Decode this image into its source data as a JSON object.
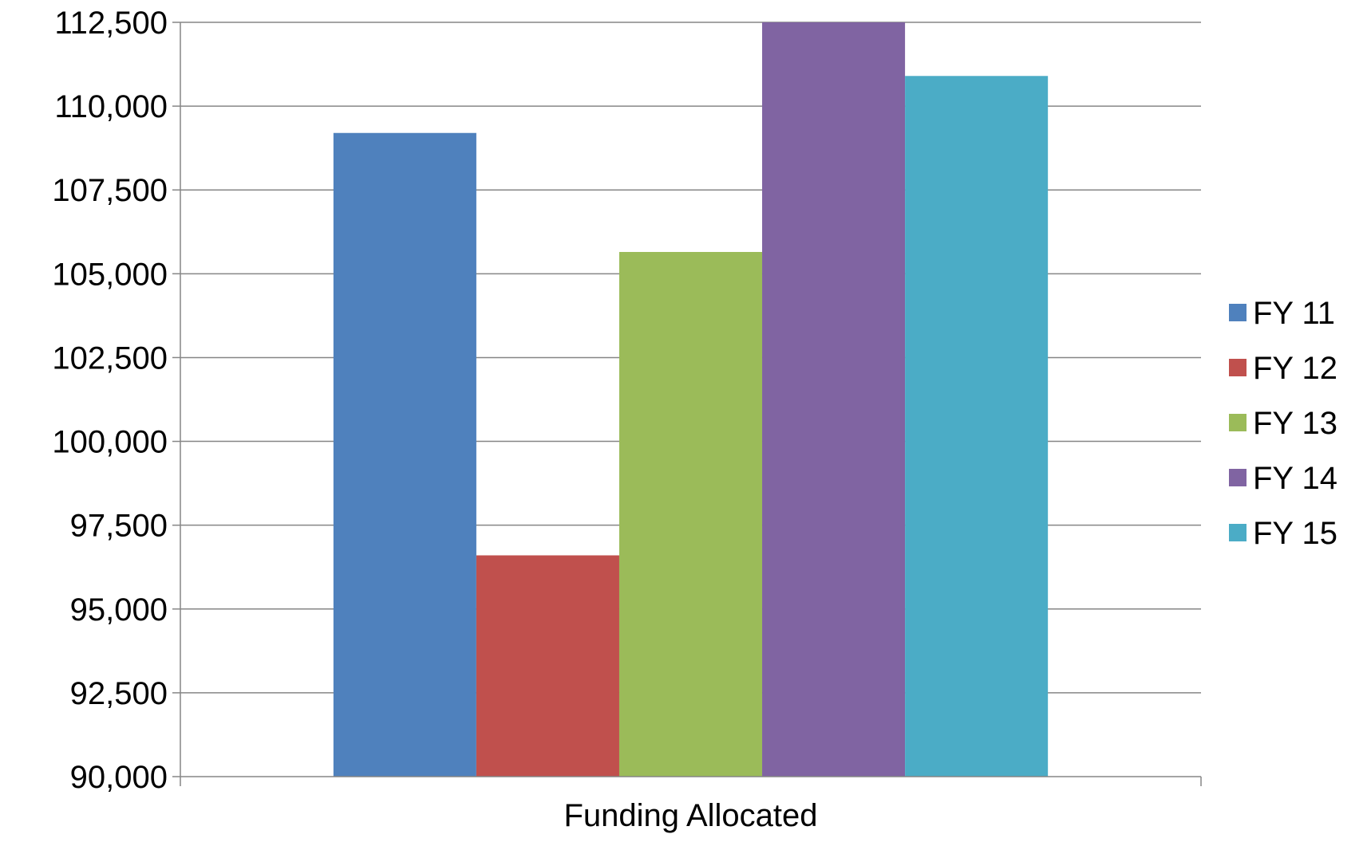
{
  "chart_data": {
    "type": "bar",
    "categories": [
      "Funding Allocated"
    ],
    "series": [
      {
        "name": "FY 11",
        "values": [
          109200
        ],
        "color": "#4F81BD"
      },
      {
        "name": "FY 12",
        "values": [
          96600
        ],
        "color": "#C0504D"
      },
      {
        "name": "FY 13",
        "values": [
          105650
        ],
        "color": "#9BBB59"
      },
      {
        "name": "FY 14",
        "values": [
          112500
        ],
        "color": "#8064A2"
      },
      {
        "name": "FY 15",
        "values": [
          110900
        ],
        "color": "#4BACC6"
      }
    ],
    "ylim": [
      90000,
      112500
    ],
    "yticks": [
      90000,
      92500,
      95000,
      97500,
      100000,
      102500,
      105000,
      107500,
      110000,
      112500
    ],
    "ytick_labels": [
      "90,000",
      "92,500",
      "95,000",
      "97,500",
      "100,000",
      "102,500",
      "105,000",
      "107,500",
      "110,000",
      "112,500"
    ],
    "title": "",
    "xlabel": "",
    "ylabel": "",
    "grid": true,
    "legend_position": "right",
    "colors": {
      "gridline": "#868686",
      "axis": "#868686",
      "text": "#000000",
      "background": "#FFFFFF"
    }
  }
}
